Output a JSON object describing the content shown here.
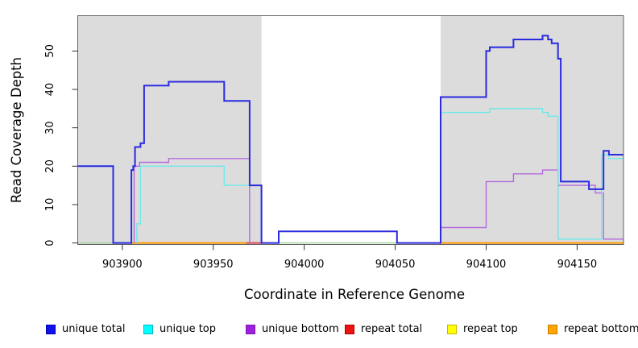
{
  "chart_data": {
    "type": "line",
    "subtype": "step-coverage-plot",
    "title": "",
    "xlabel": "Coordinate in Reference Genome",
    "ylabel": "Read Coverage Depth",
    "x_ticks": [
      903900,
      903950,
      904000,
      904050,
      904100,
      904150
    ],
    "y_ticks": [
      0,
      10,
      20,
      30,
      40,
      50
    ],
    "xlim": [
      903875.5,
      904175.5
    ],
    "ylim": [
      -0.4,
      59.2
    ],
    "grid": false,
    "background_shading": {
      "color": "#dcdcdc",
      "regions": [
        [
          903875.5,
          903976.5
        ],
        [
          904075,
          904175.5
        ]
      ]
    },
    "series": [
      {
        "name": "zero-baseline-green",
        "color": "#9fd49f",
        "width": 1.4,
        "paths": [
          [
            [
              903875.5,
              0
            ],
            [
              903895,
              0
            ]
          ],
          [
            [
              903976.5,
              0
            ],
            [
              904075,
              0
            ]
          ]
        ]
      },
      {
        "name": "repeat total",
        "color": "#e0475a",
        "width": 2,
        "paths": [
          [
            [
              903968,
              0
            ],
            [
              903976.5,
              0
            ]
          ]
        ]
      },
      {
        "name": "repeat bottom",
        "color": "#ff9d00",
        "width": 2,
        "paths": [
          [
            [
              903905,
              0
            ],
            [
              903968,
              0
            ]
          ],
          [
            [
              904075,
              0
            ],
            [
              904175.5,
              0
            ]
          ]
        ]
      },
      {
        "name": "unique bottom",
        "color": "#b569de",
        "width": 1.4,
        "paths": [
          [
            [
              903906.5,
              0
            ],
            [
              903906.5,
              20
            ],
            [
              903909.5,
              20
            ],
            [
              903909.5,
              21
            ],
            [
              903925.5,
              21
            ],
            [
              903925.5,
              22
            ],
            [
              903970,
              22
            ],
            [
              903970,
              0
            ]
          ],
          [
            [
              903986,
              0
            ],
            [
              903986,
              3
            ],
            [
              904051,
              3
            ],
            [
              904051,
              0
            ]
          ],
          [
            [
              904075,
              0
            ],
            [
              904075,
              4
            ],
            [
              904100,
              4
            ],
            [
              904100,
              16
            ],
            [
              904115,
              16
            ],
            [
              904115,
              18
            ],
            [
              904131,
              18
            ],
            [
              904131,
              19
            ],
            [
              904139.5,
              19
            ],
            [
              904139.5,
              15
            ],
            [
              904160,
              15
            ],
            [
              904160,
              13
            ],
            [
              904164.5,
              13
            ],
            [
              904164.5,
              1
            ],
            [
              904175.5,
              1
            ]
          ]
        ]
      },
      {
        "name": "unique top",
        "color": "#6fe8ea",
        "width": 1.4,
        "paths": [
          [
            [
              903908,
              0
            ],
            [
              903908,
              5
            ],
            [
              903910,
              5
            ],
            [
              903910,
              20
            ],
            [
              903956,
              20
            ],
            [
              903956,
              15
            ],
            [
              903976.5,
              15
            ],
            [
              903976.5,
              0
            ]
          ],
          [
            [
              904075,
              0
            ],
            [
              904075,
              34
            ],
            [
              904102,
              34
            ],
            [
              904102,
              35
            ],
            [
              904131,
              35
            ],
            [
              904131,
              34
            ],
            [
              904134,
              34
            ],
            [
              904134,
              33
            ],
            [
              904139.5,
              33
            ],
            [
              904139.5,
              1
            ],
            [
              904163.5,
              1
            ],
            [
              904163.5,
              23
            ],
            [
              904167.5,
              23
            ],
            [
              904167.5,
              22
            ],
            [
              904175.5,
              22
            ]
          ]
        ]
      },
      {
        "name": "unique total",
        "color": "#2a2ae0",
        "width": 2,
        "paths": [
          [
            [
              903875.5,
              20
            ],
            [
              903895,
              20
            ],
            [
              903895,
              0
            ],
            [
              903905,
              0
            ],
            [
              903905,
              19
            ],
            [
              903906,
              19
            ],
            [
              903906,
              20
            ],
            [
              903907,
              20
            ],
            [
              903907,
              25
            ],
            [
              903910,
              25
            ],
            [
              903910,
              26
            ],
            [
              903912,
              26
            ],
            [
              903912,
              41
            ],
            [
              903925.5,
              41
            ],
            [
              903925.5,
              42
            ],
            [
              903956,
              42
            ],
            [
              903956,
              37
            ],
            [
              903970,
              37
            ],
            [
              903970,
              15
            ],
            [
              903976.5,
              15
            ],
            [
              903976.5,
              0
            ],
            [
              903986,
              0
            ],
            [
              903986,
              3
            ],
            [
              904051,
              3
            ],
            [
              904051,
              0
            ],
            [
              904075,
              0
            ],
            [
              904075,
              38
            ],
            [
              904100,
              38
            ],
            [
              904100,
              50
            ],
            [
              904102,
              50
            ],
            [
              904102,
              51
            ],
            [
              904115,
              51
            ],
            [
              904115,
              53
            ],
            [
              904131,
              53
            ],
            [
              904131,
              54
            ],
            [
              904134,
              54
            ],
            [
              904134,
              53
            ],
            [
              904136,
              53
            ],
            [
              904136,
              52
            ],
            [
              904139.5,
              52
            ],
            [
              904139.5,
              48
            ],
            [
              904141,
              48
            ],
            [
              904141,
              16
            ],
            [
              904156.5,
              16
            ],
            [
              904156.5,
              14
            ],
            [
              904164.5,
              14
            ],
            [
              904164.5,
              24
            ],
            [
              904167.5,
              24
            ],
            [
              904167.5,
              23
            ],
            [
              904175.5,
              23
            ]
          ]
        ]
      }
    ]
  },
  "legend": {
    "items": [
      {
        "label": "unique total",
        "fill": "#1111ee",
        "border": "#0000aa"
      },
      {
        "label": "unique top",
        "fill": "#00ffff",
        "border": "#00b8c8"
      },
      {
        "label": "unique bottom",
        "fill": "#a020e0",
        "border": "#7718a8"
      },
      {
        "label": "repeat total",
        "fill": "#ee1111",
        "border": "#aa0000"
      },
      {
        "label": "repeat top",
        "fill": "#ffff00",
        "border": "#c8b400"
      },
      {
        "label": "repeat bottom",
        "fill": "#ffa500",
        "border": "#c87800"
      }
    ]
  }
}
